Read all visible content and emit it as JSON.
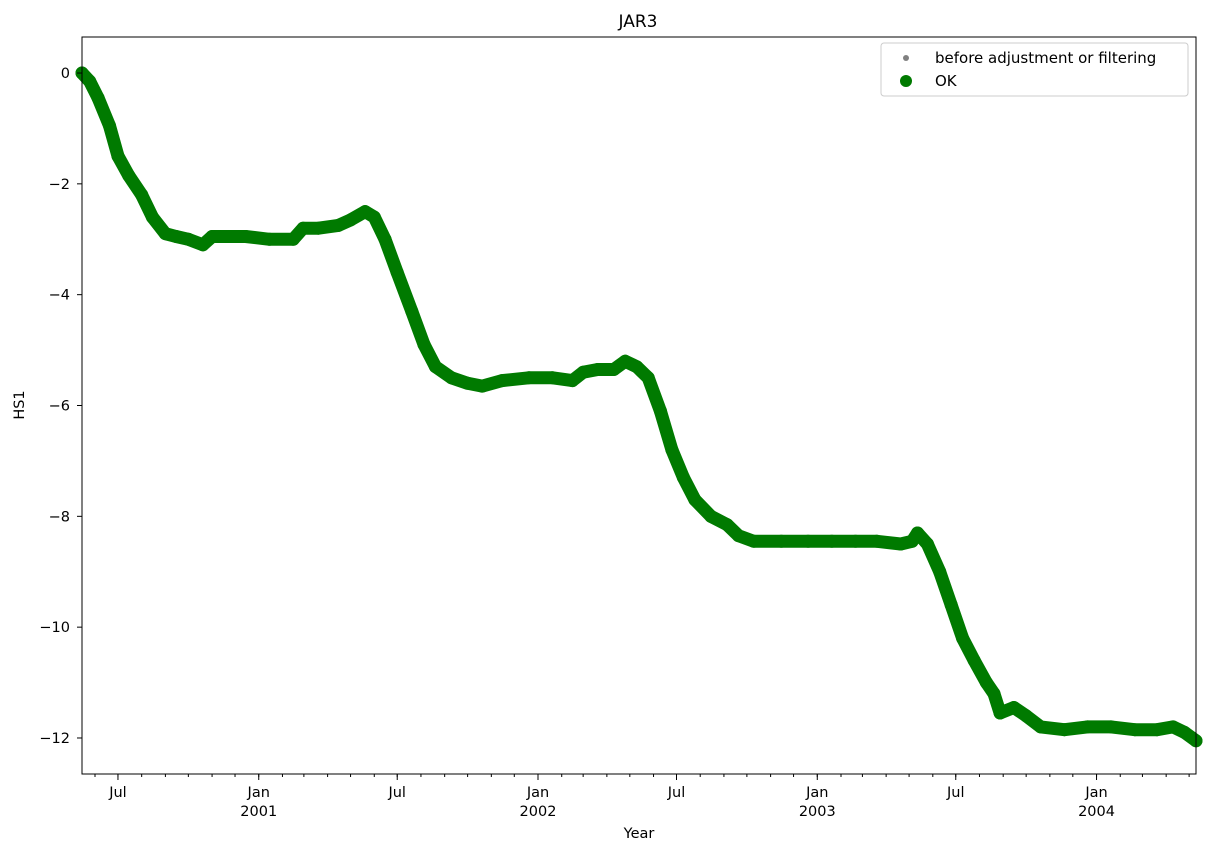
{
  "chart_data": {
    "type": "scatter",
    "title": "JAR3",
    "xlabel": "Year",
    "ylabel": "HS1",
    "x_axis_type": "date",
    "xlim": [
      "2000-05-15",
      "2004-05-10"
    ],
    "ylim": [
      -12.65,
      0.65
    ],
    "y_ticks": [
      0,
      -2,
      -4,
      -6,
      -8,
      -10,
      -12
    ],
    "y_tick_labels": [
      "0",
      "−2",
      "−4",
      "−6",
      "−8",
      "−10",
      "−12"
    ],
    "x_major_ticks": [
      {
        "date": "2000-07-01",
        "label": "Jul"
      },
      {
        "date": "2001-01-01",
        "label": "Jan",
        "year": "2001"
      },
      {
        "date": "2001-07-01",
        "label": "Jul"
      },
      {
        "date": "2002-01-01",
        "label": "Jan",
        "year": "2002"
      },
      {
        "date": "2002-07-01",
        "label": "Jul"
      },
      {
        "date": "2003-01-01",
        "label": "Jan",
        "year": "2003"
      },
      {
        "date": "2003-07-01",
        "label": "Jul"
      },
      {
        "date": "2004-01-01",
        "label": "Jan",
        "year": "2004"
      }
    ],
    "legend": {
      "placement": "top-right",
      "entries": [
        {
          "label": "before adjustment or filtering",
          "color": "#808080",
          "marker": "small-dot"
        },
        {
          "label": "OK",
          "color": "#007a00",
          "marker": "large-dot"
        }
      ]
    },
    "series": [
      {
        "name": "OK",
        "color": "#007a00",
        "points": [
          [
            "2000-05-15",
            0.0
          ],
          [
            "2000-05-25",
            -0.15
          ],
          [
            "2000-06-05",
            -0.45
          ],
          [
            "2000-06-20",
            -0.95
          ],
          [
            "2000-07-01",
            -1.5
          ],
          [
            "2000-07-15",
            -1.85
          ],
          [
            "2000-08-01",
            -2.2
          ],
          [
            "2000-08-15",
            -2.6
          ],
          [
            "2000-09-01",
            -2.9
          ],
          [
            "2000-09-15",
            -2.95
          ],
          [
            "2000-10-01",
            -3.0
          ],
          [
            "2000-10-20",
            -3.1
          ],
          [
            "2000-11-01",
            -2.95
          ],
          [
            "2000-11-15",
            -2.95
          ],
          [
            "2000-12-15",
            -2.95
          ],
          [
            "2001-01-15",
            -3.0
          ],
          [
            "2001-02-15",
            -3.0
          ],
          [
            "2001-02-28",
            -2.8
          ],
          [
            "2001-03-20",
            -2.8
          ],
          [
            "2001-04-15",
            -2.75
          ],
          [
            "2001-05-01",
            -2.65
          ],
          [
            "2001-05-20",
            -2.5
          ],
          [
            "2001-06-01",
            -2.6
          ],
          [
            "2001-06-15",
            -3.0
          ],
          [
            "2001-07-01",
            -3.6
          ],
          [
            "2001-07-20",
            -4.3
          ],
          [
            "2001-08-05",
            -4.9
          ],
          [
            "2001-08-20",
            -5.3
          ],
          [
            "2001-09-10",
            -5.5
          ],
          [
            "2001-10-01",
            -5.6
          ],
          [
            "2001-10-20",
            -5.65
          ],
          [
            "2001-11-15",
            -5.55
          ],
          [
            "2001-12-20",
            -5.5
          ],
          [
            "2002-01-20",
            -5.5
          ],
          [
            "2002-02-15",
            -5.55
          ],
          [
            "2002-03-01",
            -5.4
          ],
          [
            "2002-03-20",
            -5.35
          ],
          [
            "2002-04-10",
            -5.35
          ],
          [
            "2002-04-25",
            -5.2
          ],
          [
            "2002-05-10",
            -5.3
          ],
          [
            "2002-05-25",
            -5.5
          ],
          [
            "2002-06-10",
            -6.1
          ],
          [
            "2002-06-25",
            -6.8
          ],
          [
            "2002-07-10",
            -7.3
          ],
          [
            "2002-07-25",
            -7.7
          ],
          [
            "2002-08-15",
            -8.0
          ],
          [
            "2002-09-05",
            -8.15
          ],
          [
            "2002-09-20",
            -8.35
          ],
          [
            "2002-10-10",
            -8.45
          ],
          [
            "2002-11-15",
            -8.45
          ],
          [
            "2002-12-20",
            -8.45
          ],
          [
            "2003-01-20",
            -8.45
          ],
          [
            "2003-02-20",
            -8.45
          ],
          [
            "2003-03-20",
            -8.45
          ],
          [
            "2003-04-20",
            -8.5
          ],
          [
            "2003-05-05",
            -8.45
          ],
          [
            "2003-05-12",
            -8.3
          ],
          [
            "2003-05-25",
            -8.5
          ],
          [
            "2003-06-10",
            -9.0
          ],
          [
            "2003-06-25",
            -9.6
          ],
          [
            "2003-07-10",
            -10.2
          ],
          [
            "2003-07-25",
            -10.6
          ],
          [
            "2003-08-10",
            -11.0
          ],
          [
            "2003-08-20",
            -11.2
          ],
          [
            "2003-08-28",
            -11.55
          ],
          [
            "2003-09-15",
            -11.45
          ],
          [
            "2003-10-01",
            -11.6
          ],
          [
            "2003-10-20",
            -11.8
          ],
          [
            "2003-11-20",
            -11.85
          ],
          [
            "2003-12-20",
            -11.8
          ],
          [
            "2004-01-20",
            -11.8
          ],
          [
            "2004-02-20",
            -11.85
          ],
          [
            "2004-03-20",
            -11.85
          ],
          [
            "2004-04-10",
            -11.8
          ],
          [
            "2004-04-25",
            -11.9
          ],
          [
            "2004-05-10",
            -12.05
          ]
        ]
      }
    ]
  }
}
